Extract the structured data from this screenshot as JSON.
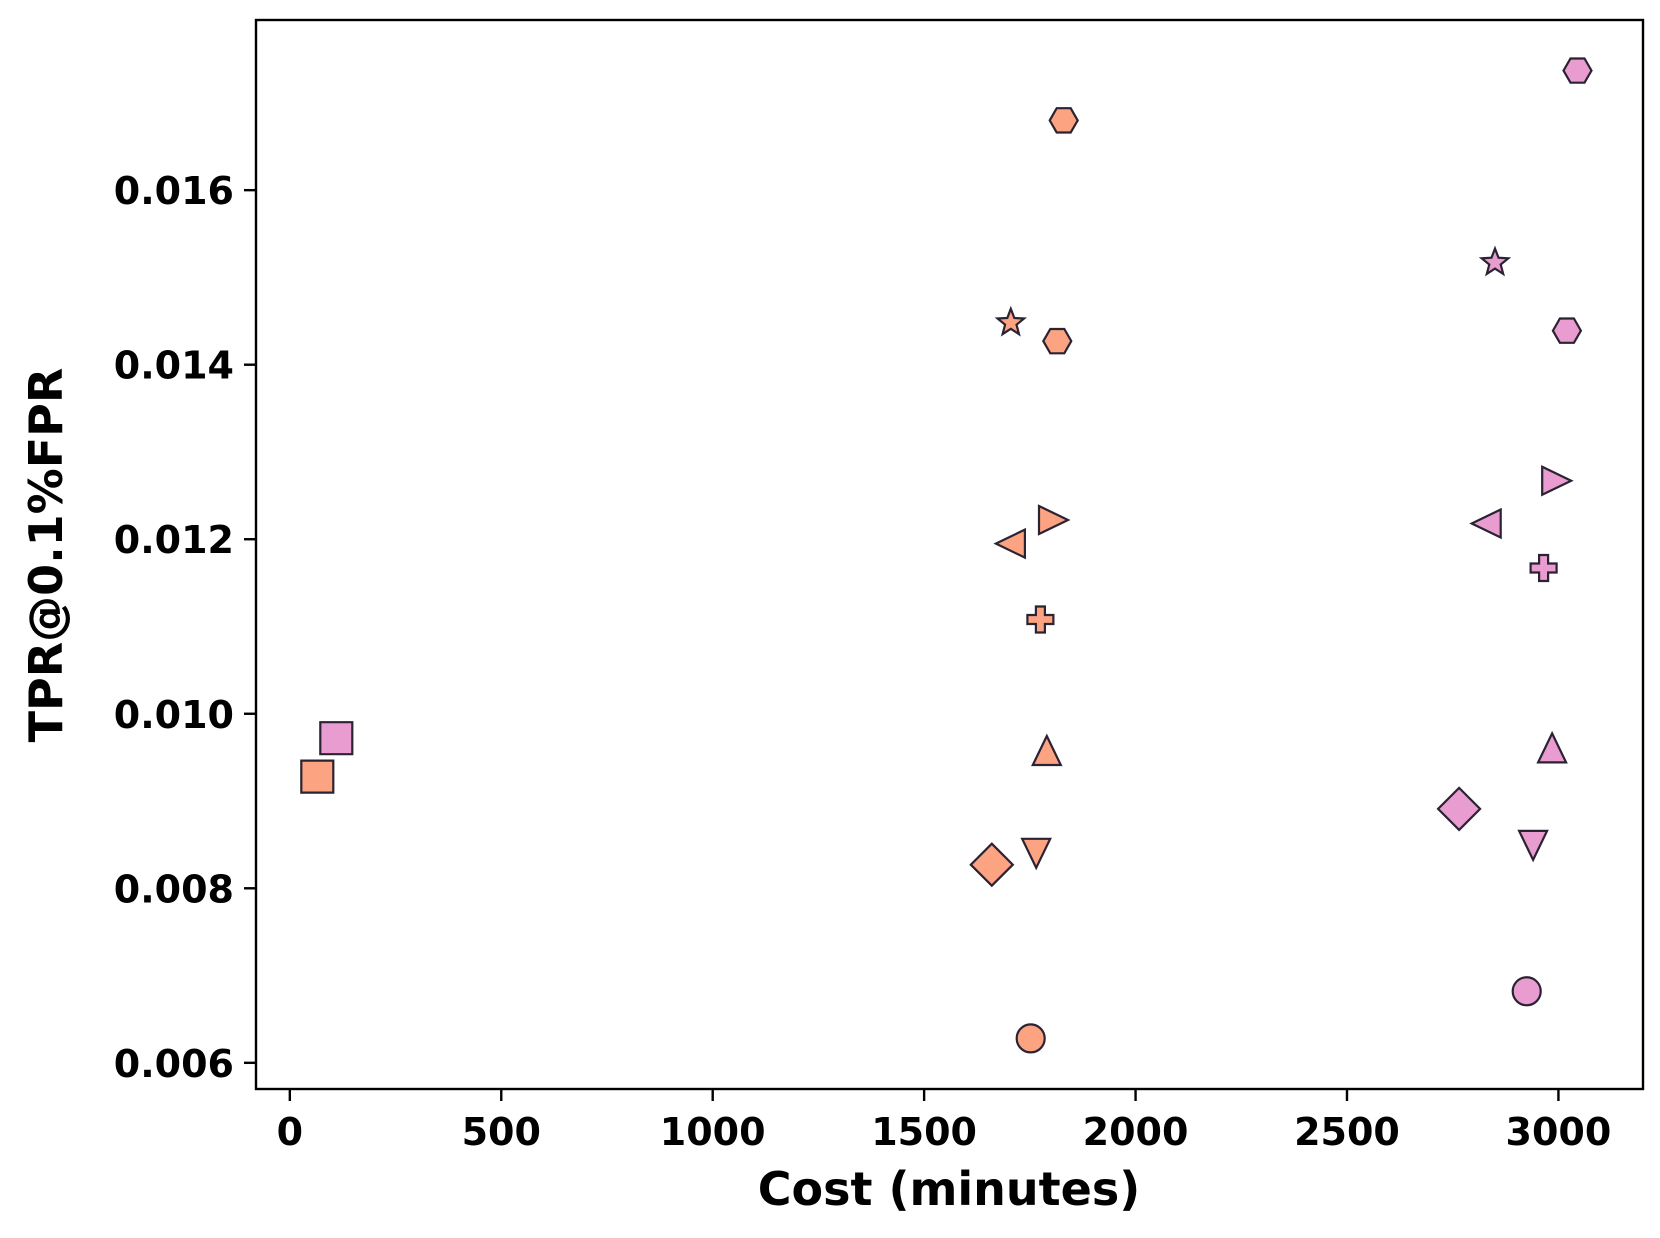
{
  "chart_data": {
    "type": "scatter",
    "title": "",
    "xlabel": "Cost (minutes)",
    "ylabel": "TPR@0.1%FPR",
    "xlim": [
      -80,
      3200
    ],
    "ylim": [
      0.0057,
      0.01795
    ],
    "xticks": [
      0,
      500,
      1000,
      1500,
      2000,
      2500,
      3000
    ],
    "xtick_labels": [
      "0",
      "500",
      "1000",
      "1500",
      "2000",
      "2500",
      "3000"
    ],
    "yticks": [
      0.006,
      0.008,
      0.01,
      0.012,
      0.014,
      0.016
    ],
    "ytick_labels": [
      "0.006",
      "0.008",
      "0.010",
      "0.012",
      "0.014",
      "0.016"
    ],
    "grid": false,
    "legend": "none",
    "colors": {
      "orange": "#fca381",
      "pink": "#e99ccf",
      "edge": "#2b2233"
    },
    "series": [
      {
        "color": "orange",
        "points": [
          {
            "marker": "square",
            "x": 65,
            "y": 0.00928
          },
          {
            "marker": "diamond",
            "x": 1660,
            "y": 0.00827
          },
          {
            "marker": "triangle-down",
            "x": 1765,
            "y": 0.00843
          },
          {
            "marker": "triangle-up",
            "x": 1790,
            "y": 0.00955
          },
          {
            "marker": "plus",
            "x": 1775,
            "y": 0.01108
          },
          {
            "marker": "triangle-left",
            "x": 1710,
            "y": 0.01195
          },
          {
            "marker": "triangle-right",
            "x": 1800,
            "y": 0.01222
          },
          {
            "marker": "star",
            "x": 1705,
            "y": 0.01448
          },
          {
            "marker": "hexagon",
            "x": 1815,
            "y": 0.01427
          },
          {
            "marker": "hexagon",
            "x": 1830,
            "y": 0.0168
          },
          {
            "marker": "circle",
            "x": 1752,
            "y": 0.00628
          }
        ]
      },
      {
        "color": "pink",
        "points": [
          {
            "marker": "square",
            "x": 110,
            "y": 0.00972
          },
          {
            "marker": "diamond",
            "x": 2765,
            "y": 0.00891
          },
          {
            "marker": "triangle-down",
            "x": 2940,
            "y": 0.00852
          },
          {
            "marker": "triangle-up",
            "x": 2985,
            "y": 0.00958
          },
          {
            "marker": "plus",
            "x": 2965,
            "y": 0.01167
          },
          {
            "marker": "triangle-left",
            "x": 2835,
            "y": 0.01218
          },
          {
            "marker": "triangle-right",
            "x": 2990,
            "y": 0.01267
          },
          {
            "marker": "star",
            "x": 2850,
            "y": 0.01517
          },
          {
            "marker": "hexagon",
            "x": 3020,
            "y": 0.01439
          },
          {
            "marker": "hexagon",
            "x": 3045,
            "y": 0.01737
          },
          {
            "marker": "circle",
            "x": 2925,
            "y": 0.00682
          }
        ]
      }
    ]
  }
}
